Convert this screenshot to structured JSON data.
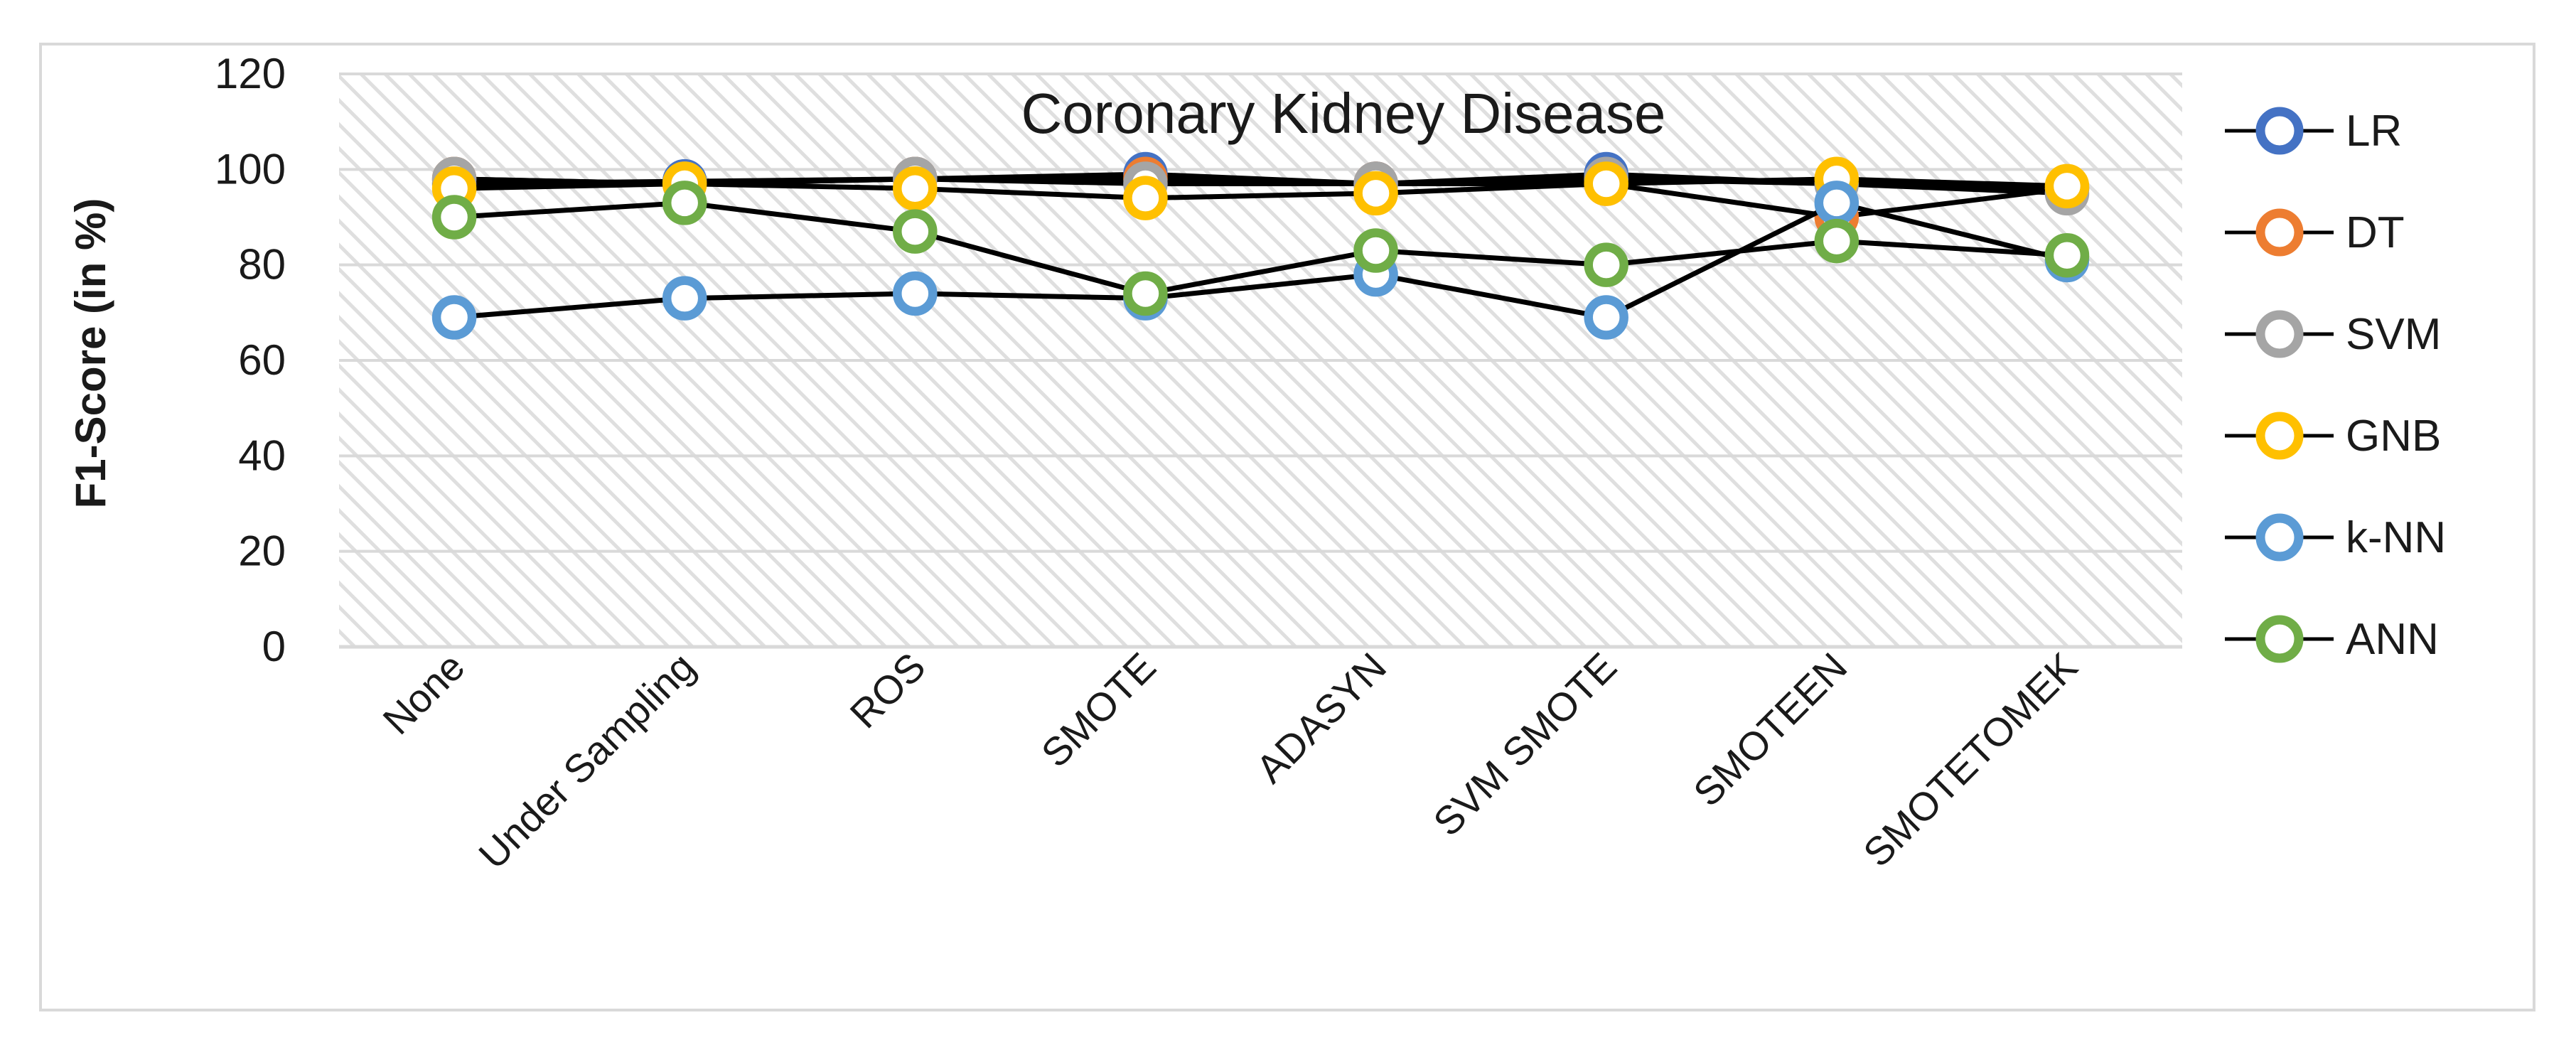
{
  "chart_data": {
    "type": "line",
    "title": "Coronary Kidney Disease",
    "ylabel": "F1-Score (in %)",
    "xlabel": "",
    "ylim": [
      0,
      120
    ],
    "yticks": [
      0,
      20,
      40,
      60,
      80,
      100,
      120
    ],
    "grid": true,
    "gridline_color": "#D9D9D9",
    "plot_background": "diagonal-hatch",
    "hatch_color": "#DFDFDF",
    "series_line_color": "#000000",
    "legend_position": "right",
    "categories": [
      "None",
      "Under Sampling",
      "ROS",
      "SMOTE",
      "ADASYN",
      "SVM SMOTE",
      "SMOTEEN",
      "SMOTETOMEK"
    ],
    "series": [
      {
        "name": "LR",
        "color": "#4472C4",
        "values": [
          97,
          97.5,
          98,
          99,
          97,
          99,
          97,
          96
        ]
      },
      {
        "name": "DT",
        "color": "#ED7D31",
        "values": [
          98,
          97,
          98,
          98,
          97,
          97,
          90,
          96
        ]
      },
      {
        "name": "SVM",
        "color": "#A5A5A5",
        "values": [
          98,
          97,
          98,
          97,
          97,
          98,
          97,
          95
        ]
      },
      {
        "name": "GNB",
        "color": "#FFC000",
        "values": [
          96,
          97,
          96,
          94,
          95,
          97,
          98,
          96.5
        ]
      },
      {
        "name": "k-NN",
        "color": "#5B9BD5",
        "values": [
          69,
          73,
          74,
          73,
          78,
          69,
          93,
          81
        ]
      },
      {
        "name": "ANN",
        "color": "#70AD47",
        "values": [
          90,
          93,
          87,
          74,
          83,
          80,
          85,
          82
        ]
      }
    ]
  }
}
